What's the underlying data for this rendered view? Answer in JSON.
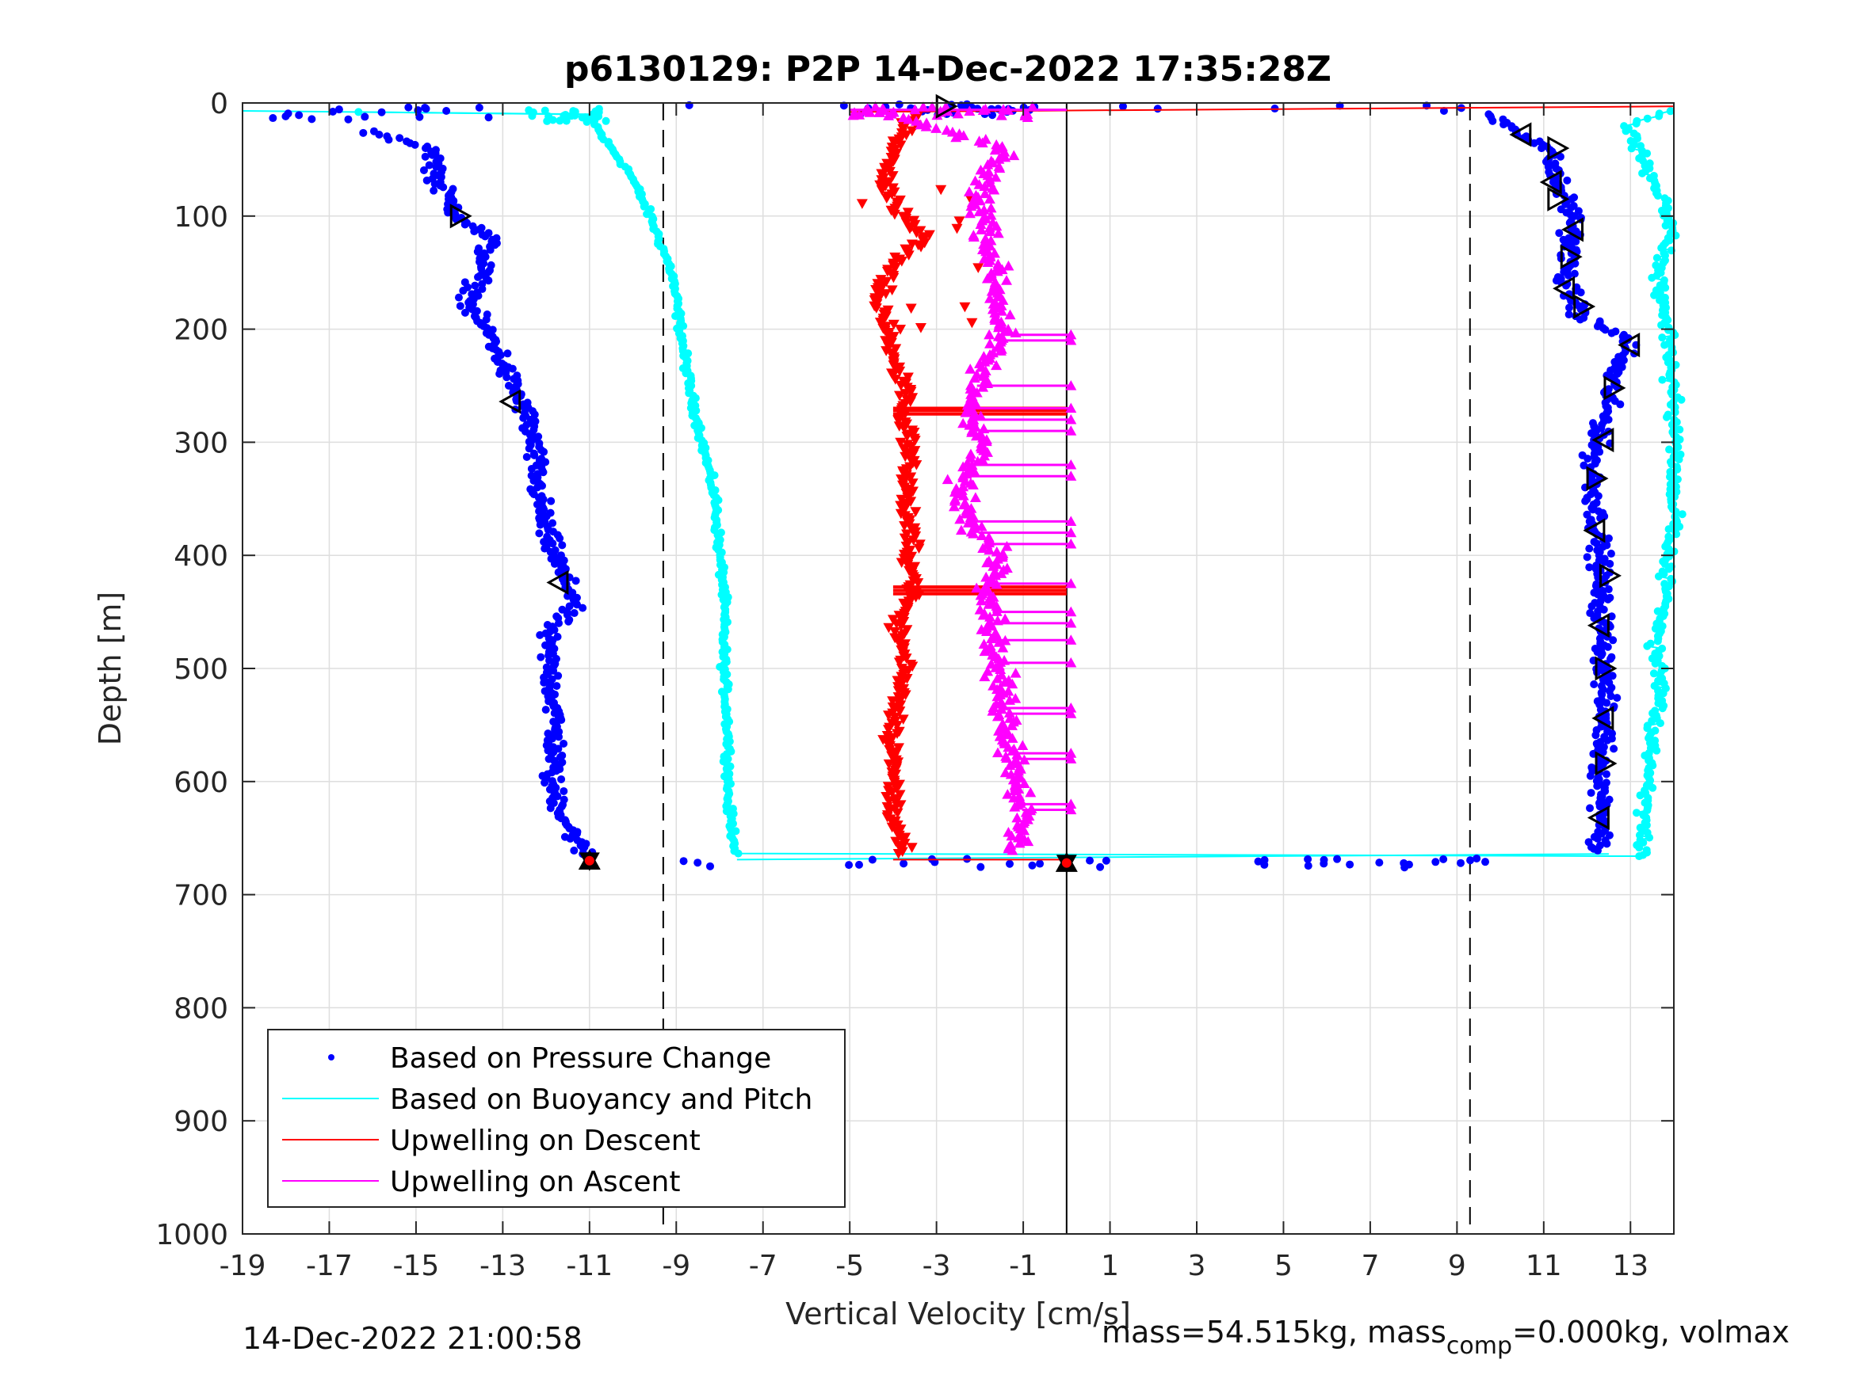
{
  "chart_data": {
    "type": "scatter",
    "title": "p6130129: P2P 14-Dec-2022 17:35:28Z",
    "xlabel": "Vertical Velocity [cm/s]",
    "ylabel": "Depth [m]",
    "xlim": [
      -19,
      14
    ],
    "ylim": [
      0,
      1000
    ],
    "y_reversed": true,
    "x_ticks": [
      -19,
      -17,
      -15,
      -13,
      -11,
      -9,
      -7,
      -5,
      -3,
      -1,
      1,
      3,
      5,
      7,
      9,
      11,
      13
    ],
    "y_ticks": [
      0,
      100,
      200,
      300,
      400,
      500,
      600,
      700,
      800,
      900,
      1000
    ],
    "grid": true,
    "legend_position": "bottom-left",
    "reference_lines": [
      {
        "x": -9.3,
        "style": "dashed"
      },
      {
        "x": 9.3,
        "style": "dashed"
      },
      {
        "x": 0,
        "style": "solid"
      }
    ],
    "series": [
      {
        "name": "Based on Pressure Change",
        "color": "#0000ff",
        "marker": "dot",
        "descent": {
          "depth": [
            5,
            40,
            70,
            100,
            120,
            150,
            180,
            210,
            240,
            270,
            300,
            340,
            380,
            420,
            440,
            470,
            500,
            540,
            580,
            600,
            630,
            660,
            670
          ],
          "velocity": [
            -18.4,
            -14.6,
            -14.5,
            -14.0,
            -13.3,
            -13.5,
            -13.8,
            -13.2,
            -12.9,
            -12.5,
            -12.3,
            -12.2,
            -12.0,
            -11.6,
            -11.3,
            -12.0,
            -11.9,
            -11.8,
            -11.8,
            -11.9,
            -11.6,
            -11.2,
            -11.0
          ]
        },
        "ascent": {
          "depth": [
            5,
            20,
            40,
            70,
            100,
            130,
            160,
            190,
            210,
            240,
            280,
            320,
            360,
            400,
            440,
            480,
            520,
            560,
            600,
            640,
            660
          ],
          "velocity": [
            9.5,
            10.2,
            11.1,
            11.3,
            11.7,
            11.6,
            11.5,
            11.9,
            13.0,
            12.6,
            12.4,
            12.1,
            12.2,
            12.3,
            12.3,
            12.4,
            12.4,
            12.4,
            12.3,
            12.4,
            12.2
          ]
        },
        "bottom_turn": {
          "depth": [
            670,
            671,
            672,
            672,
            673,
            671,
            670
          ],
          "velocity": [
            -11.0,
            -9.0,
            -5.0,
            -3.5,
            0.5,
            5.0,
            9.0
          ]
        }
      },
      {
        "name": "Based on Buoyancy and Pitch",
        "color": "#00ffff",
        "marker": "line",
        "descent": {
          "depth": [
            7,
            10,
            30,
            60,
            100,
            150,
            200,
            250,
            300,
            350,
            400,
            430,
            500,
            560,
            620,
            665
          ],
          "velocity": [
            -19.0,
            -11.0,
            -10.7,
            -10.1,
            -9.6,
            -9.1,
            -8.9,
            -8.7,
            -8.4,
            -8.1,
            -8.0,
            -7.9,
            -7.9,
            -7.8,
            -7.8,
            -7.6
          ]
        },
        "ascent": {
          "depth": [
            665,
            640,
            600,
            560,
            520,
            480,
            440,
            400,
            370,
            290,
            200,
            150,
            110,
            60,
            20,
            5
          ],
          "velocity": [
            13.2,
            13.3,
            13.4,
            13.5,
            13.7,
            13.6,
            13.8,
            13.9,
            14.0,
            14.0,
            13.9,
            13.6,
            14.0,
            13.4,
            13.0,
            14.0
          ]
        }
      },
      {
        "name": "Upwelling on Descent",
        "color": "#ff0000",
        "marker": "triangle-down",
        "depth": [
          10,
          30,
          60,
          90,
          120,
          140,
          170,
          200,
          230,
          260,
          270,
          300,
          350,
          400,
          430,
          460,
          500,
          560,
          620,
          660
        ],
        "velocity": [
          -3.5,
          -3.8,
          -4.2,
          -4.0,
          -3.2,
          -4.0,
          -4.4,
          -4.1,
          -4.0,
          -3.6,
          -3.8,
          -3.6,
          -3.7,
          -3.6,
          -3.5,
          -3.9,
          -3.7,
          -4.0,
          -4.0,
          -3.8
        ]
      },
      {
        "name": "Upwelling on Ascent",
        "color": "#ff00ff",
        "marker": "triangle-up",
        "depth": [
          5,
          40,
          80,
          120,
          160,
          200,
          240,
          270,
          300,
          340,
          370,
          400,
          430,
          460,
          500,
          540,
          580,
          620,
          660
        ],
        "velocity": [
          -4.5,
          -1.5,
          -2.0,
          -1.8,
          -1.6,
          -1.5,
          -2.0,
          -2.2,
          -1.9,
          -2.5,
          -2.3,
          -1.5,
          -1.7,
          -1.7,
          -1.6,
          -1.4,
          -1.2,
          -1.0,
          -1.2
        ]
      }
    ],
    "triangle_markers": [
      {
        "depth": 3,
        "velocity": -2.8,
        "dir": "right"
      },
      {
        "depth": 100,
        "velocity": -14.0,
        "dir": "right"
      },
      {
        "depth": 264,
        "velocity": -12.8,
        "dir": "left"
      },
      {
        "depth": 424,
        "velocity": -11.7,
        "dir": "left"
      },
      {
        "depth": 28,
        "velocity": 10.5,
        "dir": "left"
      },
      {
        "depth": 40,
        "velocity": 11.3,
        "dir": "right"
      },
      {
        "depth": 70,
        "velocity": 11.2,
        "dir": "left"
      },
      {
        "depth": 85,
        "velocity": 11.3,
        "dir": "right"
      },
      {
        "depth": 112,
        "velocity": 11.7,
        "dir": "left"
      },
      {
        "depth": 136,
        "velocity": 11.6,
        "dir": "right"
      },
      {
        "depth": 164,
        "velocity": 11.5,
        "dir": "left"
      },
      {
        "depth": 180,
        "velocity": 11.9,
        "dir": "right"
      },
      {
        "depth": 214,
        "velocity": 13.0,
        "dir": "left"
      },
      {
        "depth": 252,
        "velocity": 12.6,
        "dir": "right"
      },
      {
        "depth": 298,
        "velocity": 12.4,
        "dir": "left"
      },
      {
        "depth": 332,
        "velocity": 12.2,
        "dir": "right"
      },
      {
        "depth": 378,
        "velocity": 12.2,
        "dir": "left"
      },
      {
        "depth": 418,
        "velocity": 12.5,
        "dir": "right"
      },
      {
        "depth": 462,
        "velocity": 12.3,
        "dir": "left"
      },
      {
        "depth": 500,
        "velocity": 12.4,
        "dir": "right"
      },
      {
        "depth": 544,
        "velocity": 12.4,
        "dir": "left"
      },
      {
        "depth": 584,
        "velocity": 12.4,
        "dir": "right"
      },
      {
        "depth": 632,
        "velocity": 12.3,
        "dir": "left"
      }
    ],
    "bottom_markers": [
      {
        "depth": 670,
        "velocity": -11.0
      },
      {
        "depth": 672,
        "velocity": 0.0
      }
    ]
  },
  "footer": {
    "timestamp": "14-Dec-2022 21:00:58",
    "mass_text": "mass=54.515kg, mass",
    "mass_sub": "comp",
    "mass_tail": "=0.000kg, volmax"
  }
}
